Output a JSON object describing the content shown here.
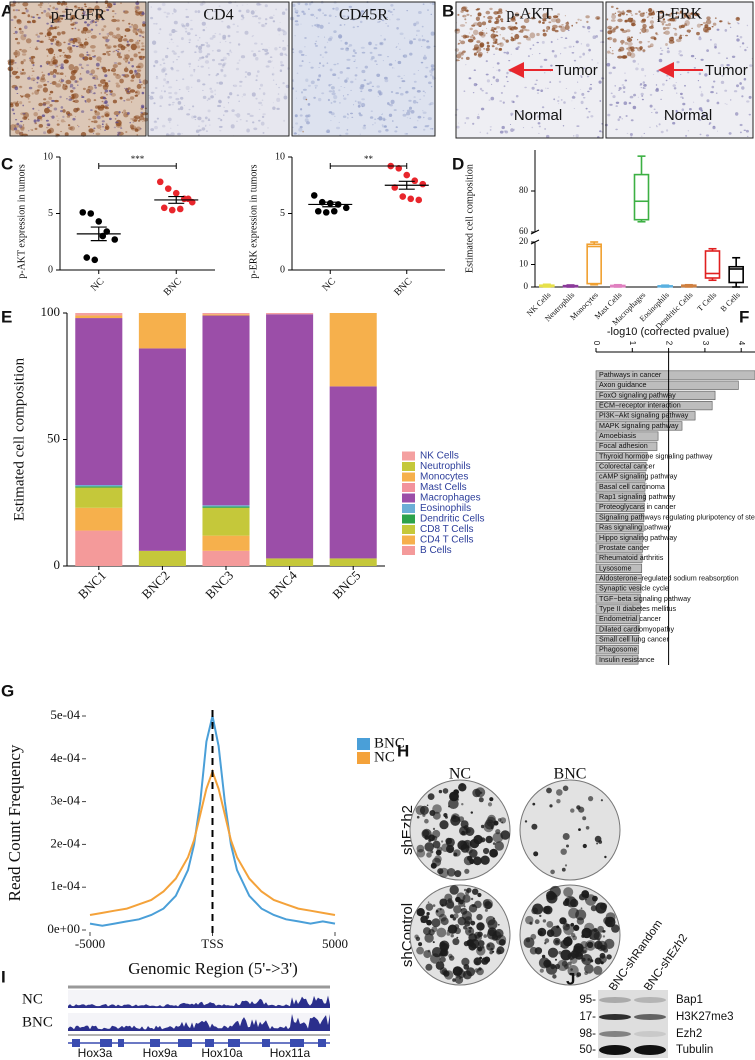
{
  "panels": {
    "A": {
      "letter": "A",
      "stains": [
        "p-EGFR",
        "CD4",
        "CD45R"
      ]
    },
    "B": {
      "letter": "B",
      "images": [
        {
          "stain": "p-AKT",
          "tumor": "Tumor",
          "normal": "Normal"
        },
        {
          "stain": "p-ERK",
          "tumor": "Tumor",
          "normal": "Normal"
        }
      ]
    },
    "H": {
      "letter": "H",
      "columns": [
        "NC",
        "BNC"
      ],
      "rows": [
        "shEzh2",
        "shControl"
      ]
    },
    "I": {
      "letter": "I",
      "tracks": [
        "NC",
        "BNC"
      ],
      "genes": [
        "Hox3a",
        "Hox9a",
        "Hox10a",
        "Hox11a"
      ]
    },
    "J": {
      "letter": "J",
      "lanes": [
        "BNC-shRandom",
        "BNC-shEzh2"
      ],
      "markers": [
        "95-",
        "17-",
        "98-",
        "50-"
      ],
      "proteins": [
        "Bap1",
        "H3K27me3",
        "Ezh2",
        "Tubulin"
      ]
    }
  },
  "chart_data": [
    {
      "type": "dotplot",
      "panel": "C",
      "ylabel": "p-AKT expression in tumors",
      "categories": [
        "NC",
        "BNC"
      ],
      "points": [
        [
          5.1,
          5.0,
          4.3,
          3.4,
          2.7,
          1.1,
          0.9,
          3.0
        ],
        [
          7.8,
          7.2,
          6.8,
          6.3,
          6.0,
          5.5,
          5.3,
          5.4,
          6.3
        ]
      ],
      "colors": [
        "#000000",
        "#e8262c"
      ],
      "means": [
        3.2,
        6.2
      ],
      "errors": [
        0.6,
        0.3
      ],
      "ylim": [
        0,
        10
      ],
      "yticks": [
        0,
        5,
        10
      ],
      "significance": "***"
    },
    {
      "type": "dotplot",
      "ylabel": "p-ERK expression in tumors",
      "categories": [
        "NC",
        "BNC"
      ],
      "points": [
        [
          6.6,
          6.0,
          5.9,
          5.8,
          5.5,
          5.2,
          5.1,
          5.2
        ],
        [
          9.2,
          9.0,
          8.4,
          7.9,
          7.6,
          7.3,
          6.5,
          6.3,
          6.2
        ]
      ],
      "colors": [
        "#000000",
        "#e8262c"
      ],
      "means": [
        5.8,
        7.5
      ],
      "errors": [
        0.2,
        0.35
      ],
      "ylim": [
        0,
        10
      ],
      "yticks": [
        0,
        5,
        10
      ],
      "significance": "**"
    },
    {
      "type": "box",
      "panel": "D",
      "ylabel": "Estimated cell composition",
      "categories": [
        "NK Cells",
        "Neutrophils",
        "Monocytes",
        "Mast Cells",
        "Macrophages",
        "Eosinophils",
        "Dendritic Cells",
        "T Cells",
        "B Cells"
      ],
      "boxes": [
        {
          "min": 0,
          "q1": 0.2,
          "median": 0.5,
          "q3": 0.8,
          "max": 1.2
        },
        {
          "min": 0,
          "q1": 0.1,
          "median": 0.3,
          "q3": 0.6,
          "max": 0.9
        },
        {
          "min": 1,
          "q1": 1.5,
          "median": 18,
          "q3": 19,
          "max": 20
        },
        {
          "min": 0,
          "q1": 0.1,
          "median": 0.4,
          "q3": 0.7,
          "max": 1
        },
        {
          "min": 65,
          "q1": 66,
          "median": 75,
          "q3": 88,
          "max": 97
        },
        {
          "min": 0,
          "q1": 0.1,
          "median": 0.3,
          "q3": 0.5,
          "max": 0.8
        },
        {
          "min": 0,
          "q1": 0.2,
          "median": 0.5,
          "q3": 0.8,
          "max": 1
        },
        {
          "min": 3,
          "q1": 4,
          "median": 6,
          "q3": 16,
          "max": 17
        },
        {
          "min": 0,
          "q1": 2,
          "median": 8,
          "q3": 9,
          "max": 13
        }
      ],
      "colors": [
        "#e6e04a",
        "#8b3a9a",
        "#f0a030",
        "#e080c0",
        "#3cb043",
        "#5ab0e0",
        "#d08040",
        "#e02020",
        "#000000"
      ],
      "ylim": [
        0,
        100
      ],
      "yticks": [
        0,
        10,
        20,
        60,
        80
      ],
      "axis_break": [
        20,
        60
      ]
    },
    {
      "type": "bar",
      "panel": "E",
      "stacked": true,
      "ylabel": "Estimated cell composition",
      "categories": [
        "BNC1",
        "BNC2",
        "BNC3",
        "BNC4",
        "BNC5"
      ],
      "series": [
        {
          "name": "NK Cells",
          "color": "#f4a0a0",
          "values": [
            1,
            0,
            0.5,
            0.5,
            0
          ]
        },
        {
          "name": "Neutrophils",
          "color": "#c5c83a",
          "values": [
            0,
            0,
            0,
            0,
            0
          ]
        },
        {
          "name": "Monocytes",
          "color": "#f6b04c",
          "values": [
            1,
            14,
            0.5,
            0,
            29
          ]
        },
        {
          "name": "Mast Cells",
          "color": "#f2929c",
          "values": [
            0,
            0,
            0,
            0,
            0
          ]
        },
        {
          "name": "Macrophages",
          "color": "#9b4ea8",
          "values": [
            66,
            80,
            75,
            96.5,
            68
          ]
        },
        {
          "name": "Eosinophils",
          "color": "#6baed6",
          "values": [
            0.5,
            0,
            0.5,
            0,
            0
          ]
        },
        {
          "name": "Dendritic Cells",
          "color": "#2ca24a",
          "values": [
            0.5,
            0,
            0.5,
            0,
            0
          ]
        },
        {
          "name": "CD8 T Cells",
          "color": "#c5c83a",
          "values": [
            8,
            6,
            11,
            3,
            3
          ]
        },
        {
          "name": "CD4 T Cells",
          "color": "#f6b04c",
          "values": [
            9,
            0,
            6,
            0,
            0
          ]
        },
        {
          "name": "B Cells",
          "color": "#f49a9a",
          "values": [
            14,
            0,
            6,
            0,
            0
          ]
        }
      ],
      "ylim": [
        0,
        100
      ],
      "yticks": [
        0,
        50,
        100
      ]
    },
    {
      "type": "barh",
      "panel": "F",
      "title": "-log10 (corrected pvalue)",
      "categories": [
        "Pathways in cancer",
        "Axon guidance",
        "FoxO signaling pathway",
        "ECM−receptor interaction",
        "PI3K−Akt signaling pathway",
        "MAPK signaling pathway",
        "Amoebiasis",
        "Focal adhesion",
        "Thyroid hormone signaling pathway",
        "Colorectal cancer",
        "cAMP signaling pathway",
        "Basal cell carcinoma",
        "Rap1 signaling pathway",
        "Proteoglycans in cancer",
        "Signaling pathways regulating pluripotency of stem cells",
        "Ras signaling pathway",
        "Hippo signaling pathway",
        "Prostate cancer",
        "Rheumatoid arthritis",
        "Lysosome",
        "Aldosterone−regulated sodium reabsorption",
        "Synaptic vesicle cycle",
        "TGF−beta signaling pathway",
        "Type II diabetes mellitus",
        "Endometrial cancer",
        "Dilated cardiomyopathy",
        "Small cell lung cancer",
        "Phagosome",
        "Insulin resistance"
      ],
      "values": [
        4.38,
        3.92,
        3.28,
        3.2,
        2.73,
        2.37,
        1.71,
        1.68,
        1.41,
        1.38,
        1.36,
        1.35,
        1.35,
        1.33,
        1.32,
        1.3,
        1.29,
        1.28,
        1.27,
        1.26,
        1.25,
        1.24,
        1.23,
        1.22,
        1.2,
        1.19,
        1.18,
        1.17,
        1.16
      ],
      "color": "#bdbdbd",
      "xlim": [
        0,
        4.38
      ],
      "xticks": [
        0,
        1,
        2,
        3,
        4
      ],
      "vline": 2
    },
    {
      "type": "line",
      "panel": "G",
      "xlabel": "Genomic Region (5'->3')",
      "ylabel": "Read Count Frequency",
      "x": [
        -5000,
        -4500,
        -4000,
        -3500,
        -3000,
        -2500,
        -2000,
        -1500,
        -1000,
        -750,
        -500,
        -250,
        0,
        250,
        500,
        750,
        1000,
        1500,
        2000,
        2500,
        3000,
        3500,
        4000,
        4500,
        5000
      ],
      "series": [
        {
          "name": "BNC",
          "color": "#4a9fd8",
          "values": [
            1.5e-05,
            1e-05,
            1.5e-05,
            2e-05,
            2.5e-05,
            3.5e-05,
            5e-05,
            8e-05,
            0.00014,
            0.0002,
            0.0003,
            0.00044,
            0.0005,
            0.00043,
            0.0003,
            0.0002,
            0.00014,
            8e-05,
            5e-05,
            3.5e-05,
            2.5e-05,
            2e-05,
            1.5e-05,
            2e-05,
            1.5e-05
          ]
        },
        {
          "name": "NC",
          "color": "#f4a23a",
          "values": [
            3.5e-05,
            4e-05,
            4.5e-05,
            5e-05,
            6e-05,
            7e-05,
            9e-05,
            0.00012,
            0.00017,
            0.00021,
            0.00027,
            0.00033,
            0.00037,
            0.00033,
            0.00027,
            0.00021,
            0.00017,
            0.00012,
            9e-05,
            7e-05,
            6e-05,
            5e-05,
            4.5e-05,
            4e-05,
            3.5e-05
          ]
        }
      ],
      "xlim": [
        -5000,
        5000
      ],
      "xticks": [
        -5000,
        {
          "value": 0,
          "label": "TSS"
        },
        5000
      ],
      "ylim": [
        0,
        0.0005
      ],
      "yticks": [
        {
          "value": 0,
          "label": "0e+00"
        },
        {
          "value": 0.0001,
          "label": "1e-04"
        },
        {
          "value": 0.0002,
          "label": "2e-04"
        },
        {
          "value": 0.0003,
          "label": "3e-04"
        },
        {
          "value": 0.0004,
          "label": "4e-04"
        },
        {
          "value": 0.0005,
          "label": "5e-04"
        }
      ],
      "vline": 0
    }
  ]
}
